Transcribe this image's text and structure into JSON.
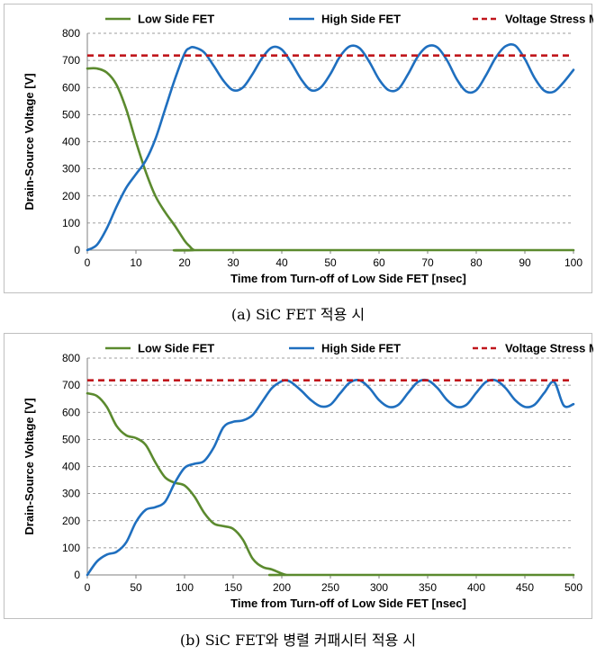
{
  "chart_data": [
    {
      "type": "line",
      "xlabel": "Time from Turn-off of Low Side FET [nsec]",
      "ylabel": "Drain-Source  Voltage [V]",
      "xlim": [
        0,
        100
      ],
      "ylim": [
        0,
        800
      ],
      "x_ticks": [
        "0",
        "10",
        "20",
        "30",
        "40",
        "50",
        "60",
        "70",
        "80",
        "90",
        "100"
      ],
      "y_ticks": [
        "0",
        "100",
        "200",
        "300",
        "400",
        "500",
        "600",
        "700",
        "800"
      ],
      "grid": "horizontal dashed",
      "legend_position": "top",
      "series": [
        {
          "name": "Low Side FET",
          "color": "#5b8a2e",
          "style": "solid",
          "x": [
            0,
            2,
            4,
            6,
            8,
            10,
            12,
            14,
            16,
            18,
            20,
            21,
            22,
            24,
            100
          ],
          "y": [
            670,
            670,
            655,
            610,
            520,
            400,
            290,
            200,
            140,
            90,
            35,
            15,
            0,
            0,
            0
          ]
        },
        {
          "name": "High Side FET",
          "color": "#1f6fbf",
          "style": "solid",
          "x": [
            0,
            2,
            4,
            6,
            8,
            10,
            12,
            14,
            16,
            18,
            20,
            21,
            22,
            24,
            26,
            28,
            30,
            32,
            34,
            36,
            38,
            40,
            42,
            44,
            46,
            48,
            50,
            52,
            54,
            56,
            58,
            60,
            62,
            64,
            66,
            68,
            70,
            72,
            74,
            76,
            78,
            80,
            82,
            84,
            86,
            88,
            90,
            92,
            94,
            96,
            98,
            100
          ],
          "y": [
            0,
            20,
            80,
            160,
            230,
            280,
            330,
            410,
            520,
            630,
            725,
            745,
            748,
            730,
            680,
            625,
            590,
            600,
            650,
            710,
            748,
            740,
            690,
            630,
            590,
            600,
            650,
            715,
            752,
            745,
            695,
            630,
            590,
            595,
            650,
            715,
            752,
            748,
            700,
            630,
            585,
            590,
            645,
            710,
            752,
            755,
            705,
            635,
            588,
            585,
            620,
            665
          ]
        },
        {
          "name": "Voltage Stress Maigin",
          "color": "#c0161c",
          "style": "dashed",
          "x": [
            0,
            100
          ],
          "y": [
            718,
            718
          ]
        }
      ]
    },
    {
      "type": "line",
      "xlabel": "Time from Turn-off of Low Side FET [nsec]",
      "ylabel": "Drain-Source  Voltage [V]",
      "xlim": [
        0,
        500
      ],
      "ylim": [
        0,
        800
      ],
      "x_ticks": [
        "0",
        "50",
        "100",
        "150",
        "200",
        "250",
        "300",
        "350",
        "400",
        "450",
        "500"
      ],
      "y_ticks": [
        "0",
        "100",
        "200",
        "300",
        "400",
        "500",
        "600",
        "700",
        "800"
      ],
      "grid": "horizontal dashed",
      "legend_position": "top",
      "series": [
        {
          "name": "Low Side FET",
          "color": "#5b8a2e",
          "style": "solid",
          "x": [
            0,
            10,
            20,
            30,
            40,
            50,
            60,
            70,
            80,
            90,
            100,
            110,
            120,
            130,
            140,
            150,
            160,
            170,
            180,
            190,
            200,
            205,
            210,
            500
          ],
          "y": [
            670,
            660,
            620,
            550,
            515,
            505,
            480,
            415,
            360,
            340,
            330,
            290,
            230,
            190,
            180,
            170,
            130,
            60,
            30,
            20,
            5,
            0,
            0,
            0
          ]
        },
        {
          "name": "High Side FET",
          "color": "#1f6fbf",
          "style": "solid",
          "x": [
            0,
            10,
            20,
            30,
            40,
            50,
            60,
            70,
            80,
            90,
            100,
            110,
            120,
            130,
            140,
            150,
            160,
            170,
            180,
            190,
            200,
            205,
            210,
            220,
            230,
            240,
            250,
            260,
            270,
            280,
            290,
            300,
            310,
            320,
            330,
            340,
            350,
            360,
            370,
            380,
            390,
            400,
            410,
            420,
            430,
            440,
            450,
            460,
            470,
            480,
            490,
            500
          ],
          "y": [
            0,
            50,
            75,
            85,
            120,
            195,
            240,
            250,
            270,
            340,
            395,
            410,
            420,
            470,
            545,
            565,
            570,
            590,
            640,
            690,
            715,
            718,
            710,
            680,
            645,
            622,
            628,
            670,
            710,
            718,
            690,
            645,
            620,
            628,
            672,
            712,
            718,
            690,
            645,
            620,
            628,
            672,
            712,
            718,
            690,
            645,
            620,
            628,
            672,
            712,
            625,
            630
          ]
        },
        {
          "name": "Voltage Stress Maigin",
          "color": "#c0161c",
          "style": "dashed",
          "x": [
            0,
            500
          ],
          "y": [
            718,
            718
          ]
        }
      ]
    }
  ],
  "captions": {
    "a": "(a) SiC FET 적용 시",
    "b": "(b) SiC FET와 병렬 커패시터 적용 시"
  }
}
